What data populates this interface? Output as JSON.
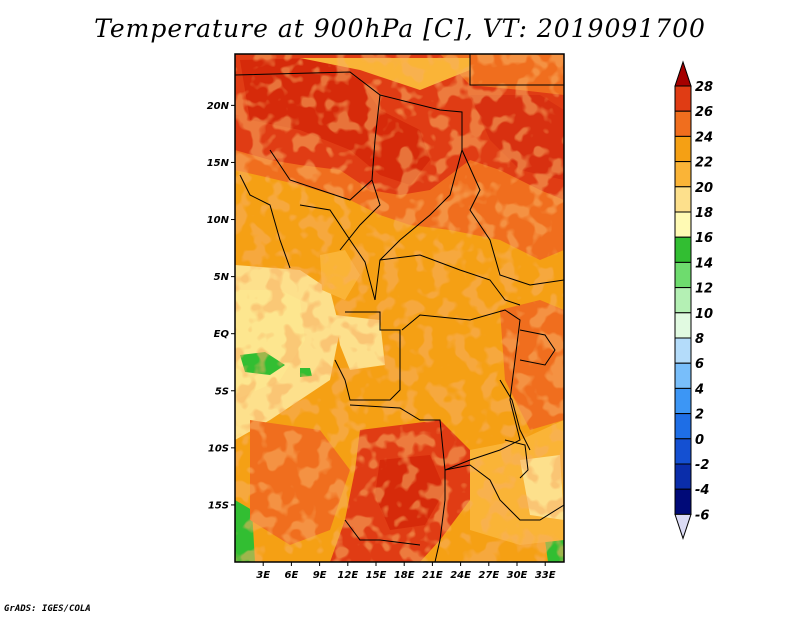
{
  "title": "Temperature at 900hPa [C], VT: 2019091700",
  "credit": "GrADS: IGES/COLA",
  "map": {
    "lat_ticks": [
      {
        "label": "20N",
        "lat": 20
      },
      {
        "label": "15N",
        "lat": 15
      },
      {
        "label": "10N",
        "lat": 10
      },
      {
        "label": "5N",
        "lat": 5
      },
      {
        "label": "EQ",
        "lat": 0
      },
      {
        "label": "5S",
        "lat": -5
      },
      {
        "label": "10S",
        "lat": -10
      },
      {
        "label": "15S",
        "lat": -15
      }
    ],
    "lon_ticks": [
      {
        "label": "3E",
        "lon": 3
      },
      {
        "label": "6E",
        "lon": 6
      },
      {
        "label": "9E",
        "lon": 9
      },
      {
        "label": "12E",
        "lon": 12
      },
      {
        "label": "15E",
        "lon": 15
      },
      {
        "label": "18E",
        "lon": 18
      },
      {
        "label": "21E",
        "lon": 21
      },
      {
        "label": "24E",
        "lon": 24
      },
      {
        "label": "27E",
        "lon": 27
      },
      {
        "label": "30E",
        "lon": 30
      },
      {
        "label": "33E",
        "lon": 33
      }
    ],
    "lat_range": [
      -20,
      24.5
    ],
    "lon_range": [
      0,
      35
    ]
  },
  "colorbar": {
    "labels": [
      "28",
      "26",
      "24",
      "22",
      "20",
      "18",
      "16",
      "14",
      "12",
      "10",
      "8",
      "6",
      "4",
      "2",
      "0",
      "-2",
      "-4",
      "-6"
    ],
    "colors": [
      "#a50000",
      "#e03c14",
      "#f06e1e",
      "#f5a014",
      "#fab437",
      "#fde08c",
      "#fffab4",
      "#32be32",
      "#6edc6e",
      "#b4f0b4",
      "#e1fae1",
      "#b4dcfa",
      "#78befa",
      "#3c96f5",
      "#1e6ee6",
      "#1450d2",
      "#0a2daa",
      "#000a78",
      "#dcdcf5"
    ]
  }
}
